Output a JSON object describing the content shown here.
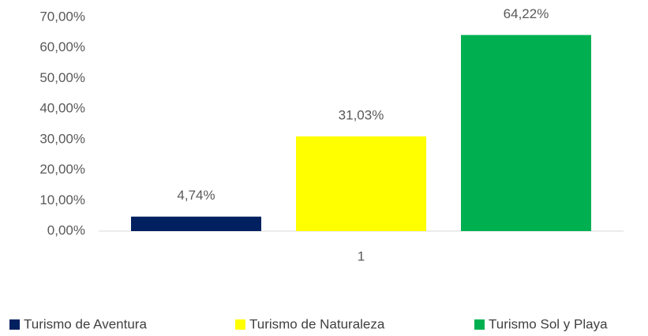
{
  "chart_data": {
    "type": "bar",
    "categories": [
      "1"
    ],
    "series": [
      {
        "name": "Turismo de Aventura",
        "color": "#002060",
        "values": [
          4.74
        ],
        "value_labels": [
          "4,74%"
        ]
      },
      {
        "name": "Turismo de Naturaleza",
        "color": "#ffff00",
        "values": [
          31.03
        ],
        "value_labels": [
          "31,03%"
        ]
      },
      {
        "name": "Turismo Sol y Playa",
        "color": "#00b050",
        "values": [
          64.22
        ],
        "value_labels": [
          "64,22%"
        ]
      }
    ],
    "ylim": [
      0,
      70
    ],
    "yticks": [
      {
        "value": 0,
        "label": "0,00%"
      },
      {
        "value": 10,
        "label": "10,00%"
      },
      {
        "value": 20,
        "label": "20,00%"
      },
      {
        "value": 30,
        "label": "30,00%"
      },
      {
        "value": 40,
        "label": "40,00%"
      },
      {
        "value": 50,
        "label": "50,00%"
      },
      {
        "value": 60,
        "label": "60,00%"
      },
      {
        "value": 70,
        "label": "70,00%"
      }
    ],
    "grid": false,
    "legend": "bottom"
  }
}
